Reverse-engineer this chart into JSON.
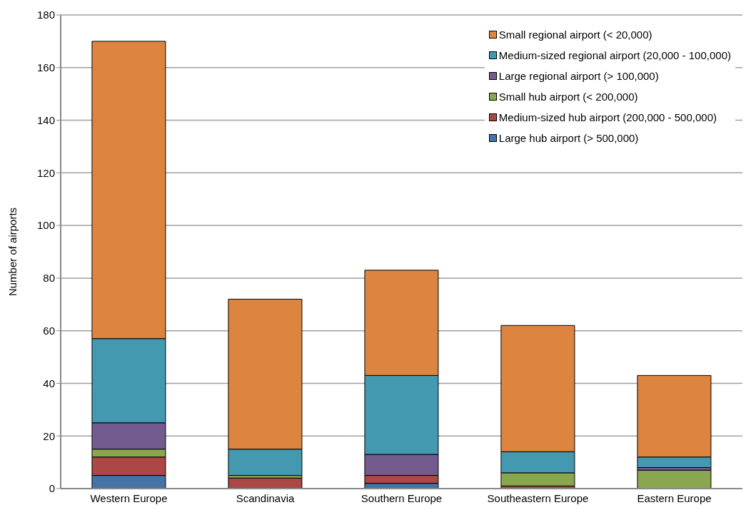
{
  "chart_data": {
    "type": "bar",
    "stacked": true,
    "ylabel": "Number of airports",
    "categories": [
      "Western Europe",
      "Scandinavia",
      "Southern Europe",
      "Southeastern Europe",
      "Eastern Europe"
    ],
    "series": [
      {
        "name": "Large hub airport (> 500,000)",
        "color": "#4572a7",
        "values": [
          5,
          0,
          2,
          0,
          0
        ]
      },
      {
        "name": "Medium-sized hub airport (200,000 - 500,000)",
        "color": "#ab4744",
        "values": [
          7,
          4,
          3,
          1,
          0
        ]
      },
      {
        "name": "Small hub airport (< 200,000)",
        "color": "#8aa64e",
        "values": [
          3,
          1,
          0,
          5,
          7
        ]
      },
      {
        "name": "Large regional airport (> 100,000)",
        "color": "#745b8f",
        "values": [
          10,
          0,
          8,
          0,
          1
        ]
      },
      {
        "name": "Medium-sized regional airport (20,000 - 100,000)",
        "color": "#4299b0",
        "values": [
          32,
          10,
          30,
          8,
          4
        ]
      },
      {
        "name": "Small regional airport (< 20,000)",
        "color": "#dd843f",
        "values": [
          113,
          57,
          40,
          48,
          31
        ]
      }
    ],
    "ylim": [
      0,
      180
    ],
    "yticks": [
      0,
      20,
      40,
      60,
      80,
      100,
      120,
      140,
      160,
      180
    ],
    "grid": "y",
    "legend": "top right"
  }
}
